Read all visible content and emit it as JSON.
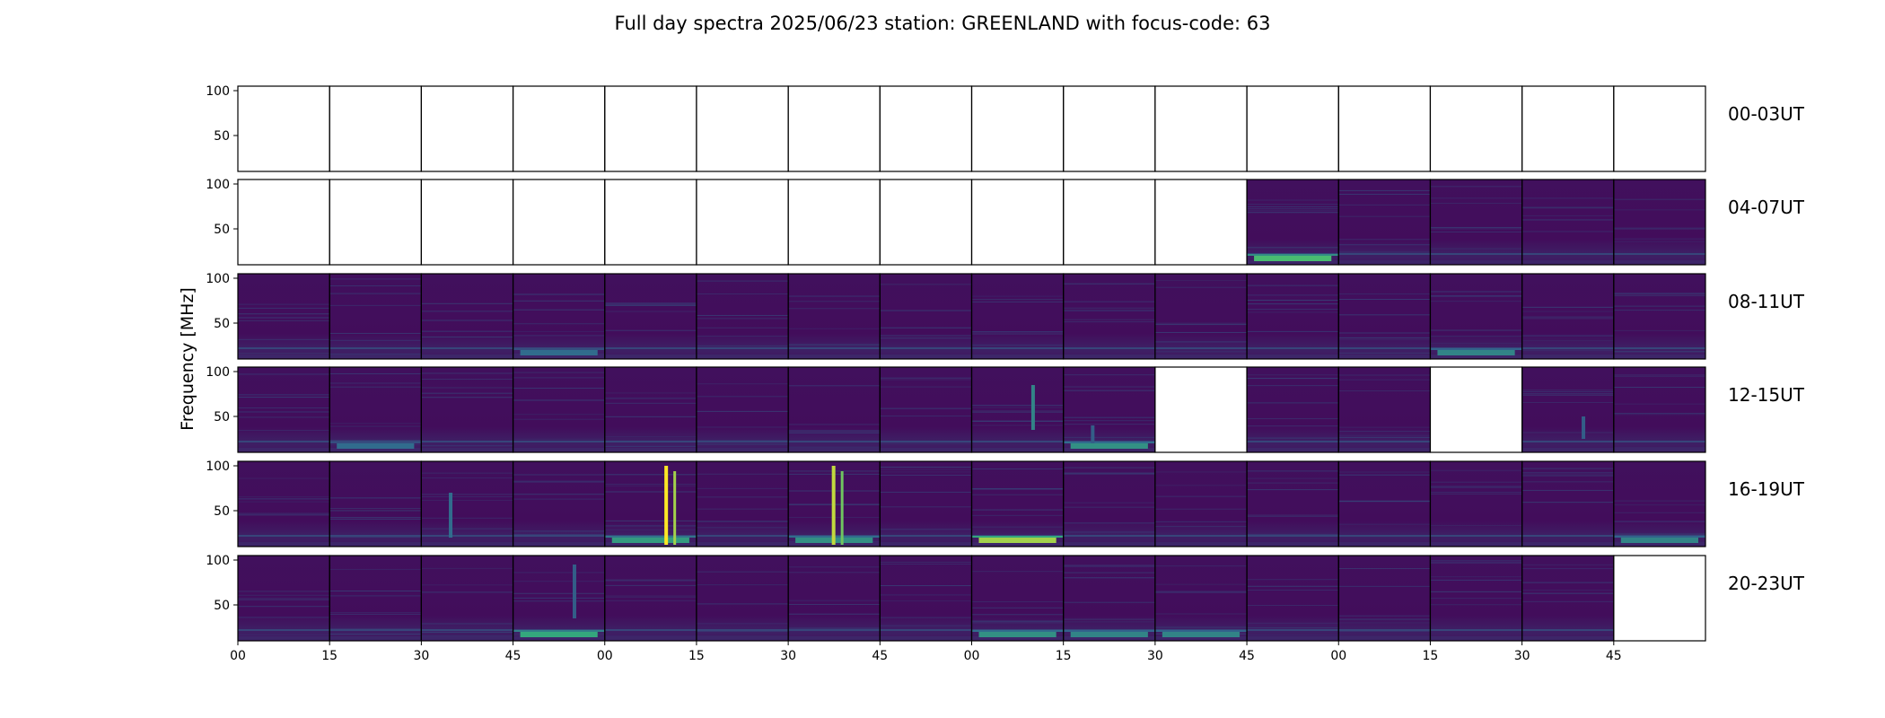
{
  "chart_data": {
    "type": "heatmap",
    "title": "Full day spectra 2025/06/23 station: GREENLAND with focus-code: 63",
    "ylabel": "Frequency [MHz]",
    "xlabel": "",
    "ylim": [
      10,
      105
    ],
    "y_ticks": [
      50,
      100
    ],
    "x_tick_labels": [
      "00",
      "15",
      "30",
      "45",
      "00",
      "15",
      "30",
      "45",
      "00",
      "15",
      "30",
      "45",
      "00",
      "15",
      "30",
      "45"
    ],
    "row_labels": [
      "00-03UT",
      "04-07UT",
      "08-11UT",
      "12-15UT",
      "16-19UT",
      "20-23UT"
    ],
    "panels_per_row": 16,
    "colormap": [
      "#440154",
      "#31688e",
      "#35b779",
      "#fde725"
    ],
    "empty_color": "#ffffff",
    "has_data": [
      [
        0,
        0,
        0,
        0,
        0,
        0,
        0,
        0,
        0,
        0,
        0,
        0,
        0,
        0,
        0,
        0
      ],
      [
        0,
        0,
        0,
        0,
        0,
        0,
        0,
        0,
        0,
        0,
        0,
        1,
        1,
        1,
        1,
        1
      ],
      [
        1,
        1,
        1,
        1,
        1,
        1,
        1,
        1,
        1,
        1,
        1,
        1,
        1,
        1,
        1,
        1
      ],
      [
        1,
        1,
        1,
        1,
        1,
        1,
        1,
        1,
        1,
        1,
        0,
        1,
        1,
        0,
        1,
        1
      ],
      [
        1,
        1,
        1,
        1,
        1,
        1,
        1,
        1,
        1,
        1,
        1,
        1,
        1,
        1,
        1,
        1
      ],
      [
        1,
        1,
        1,
        1,
        1,
        1,
        1,
        1,
        1,
        1,
        1,
        1,
        1,
        1,
        1,
        0
      ]
    ],
    "bursts": [
      {
        "row": 3,
        "panel": 8,
        "freq": [
          35,
          85
        ],
        "intensity": 0.45
      },
      {
        "row": 3,
        "panel": 9,
        "freq": [
          20,
          40
        ],
        "intensity": 0.3
      },
      {
        "row": 3,
        "panel": 14,
        "freq": [
          25,
          50
        ],
        "intensity": 0.3
      },
      {
        "row": 4,
        "panel": 2,
        "freq": [
          20,
          70
        ],
        "intensity": 0.35
      },
      {
        "row": 4,
        "panel": 4,
        "freq": [
          12,
          100
        ],
        "intensity": 1.0
      },
      {
        "row": 4,
        "panel": 6,
        "freq": [
          12,
          100
        ],
        "intensity": 0.9
      },
      {
        "row": 5,
        "panel": 3,
        "freq": [
          35,
          95
        ],
        "intensity": 0.3
      }
    ],
    "low_band_emission": [
      {
        "row": 1,
        "panel": 11,
        "intensity": 0.7
      },
      {
        "row": 2,
        "panel": 3,
        "intensity": 0.35
      },
      {
        "row": 2,
        "panel": 13,
        "intensity": 0.45
      },
      {
        "row": 3,
        "panel": 1,
        "intensity": 0.35
      },
      {
        "row": 3,
        "panel": 9,
        "intensity": 0.5
      },
      {
        "row": 4,
        "panel": 4,
        "intensity": 0.55
      },
      {
        "row": 4,
        "panel": 6,
        "intensity": 0.5
      },
      {
        "row": 4,
        "panel": 8,
        "intensity": 0.85
      },
      {
        "row": 4,
        "panel": 15,
        "intensity": 0.45
      },
      {
        "row": 5,
        "panel": 3,
        "intensity": 0.6
      },
      {
        "row": 5,
        "panel": 8,
        "intensity": 0.5
      },
      {
        "row": 5,
        "panel": 9,
        "intensity": 0.45
      },
      {
        "row": 5,
        "panel": 10,
        "intensity": 0.45
      }
    ]
  }
}
